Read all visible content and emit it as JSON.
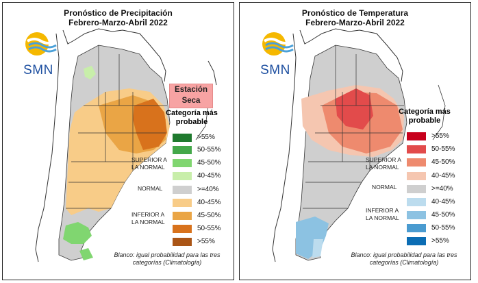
{
  "panels": [
    {
      "title": "Pronóstico de Precipitación",
      "period": "Febrero-Marzo-Abril 2022",
      "logo_text": "SMN",
      "badge": "Estación Seca",
      "legend_title": "Categoría más probable",
      "legend": [
        {
          "label": ">55%",
          "color": "#1f7a2e"
        },
        {
          "label": "50-55%",
          "color": "#44a84a"
        },
        {
          "label": "45-50%",
          "color": "#80d670"
        },
        {
          "label": "40-45%",
          "color": "#c8eeaa"
        },
        {
          "label": ">=40%",
          "color": "#cfcfcf"
        },
        {
          "label": "40-45%",
          "color": "#f8cc88"
        },
        {
          "label": "45-50%",
          "color": "#eaa545"
        },
        {
          "label": "50-55%",
          "color": "#d8721c"
        },
        {
          "label": ">55%",
          "color": "#aa5516"
        }
      ],
      "categories": {
        "upper": "SUPERIOR A LA NORMAL",
        "normal": "NORMAL",
        "lower": "INFERIOR A LA NORMAL"
      },
      "note": "Blanco: igual probabilidad para las tres categorías (Climatología)"
    },
    {
      "title": "Pronóstico de Temperatura",
      "period": "Febrero-Marzo-Abril 2022",
      "logo_text": "SMN",
      "legend_title": "Categoría más probable",
      "legend": [
        {
          "label": ">55%",
          "color": "#c7001c"
        },
        {
          "label": "50-55%",
          "color": "#e24b4b"
        },
        {
          "label": "45-50%",
          "color": "#ee8a6e"
        },
        {
          "label": "40-45%",
          "color": "#f5c6b0"
        },
        {
          "label": ">=40%",
          "color": "#cfcfcf"
        },
        {
          "label": "40-45%",
          "color": "#bcdcee"
        },
        {
          "label": "45-50%",
          "color": "#8cc2e2"
        },
        {
          "label": "50-55%",
          "color": "#4a9bd0"
        },
        {
          "label": ">55%",
          "color": "#0b6db4"
        }
      ],
      "categories": {
        "upper": "SUPERIOR A LA NORMAL",
        "normal": "NORMAL",
        "lower": "INFERIOR A LA NORMAL"
      },
      "note": "Blanco: igual probabilidad para las tres categorías (Climatología)"
    }
  ]
}
